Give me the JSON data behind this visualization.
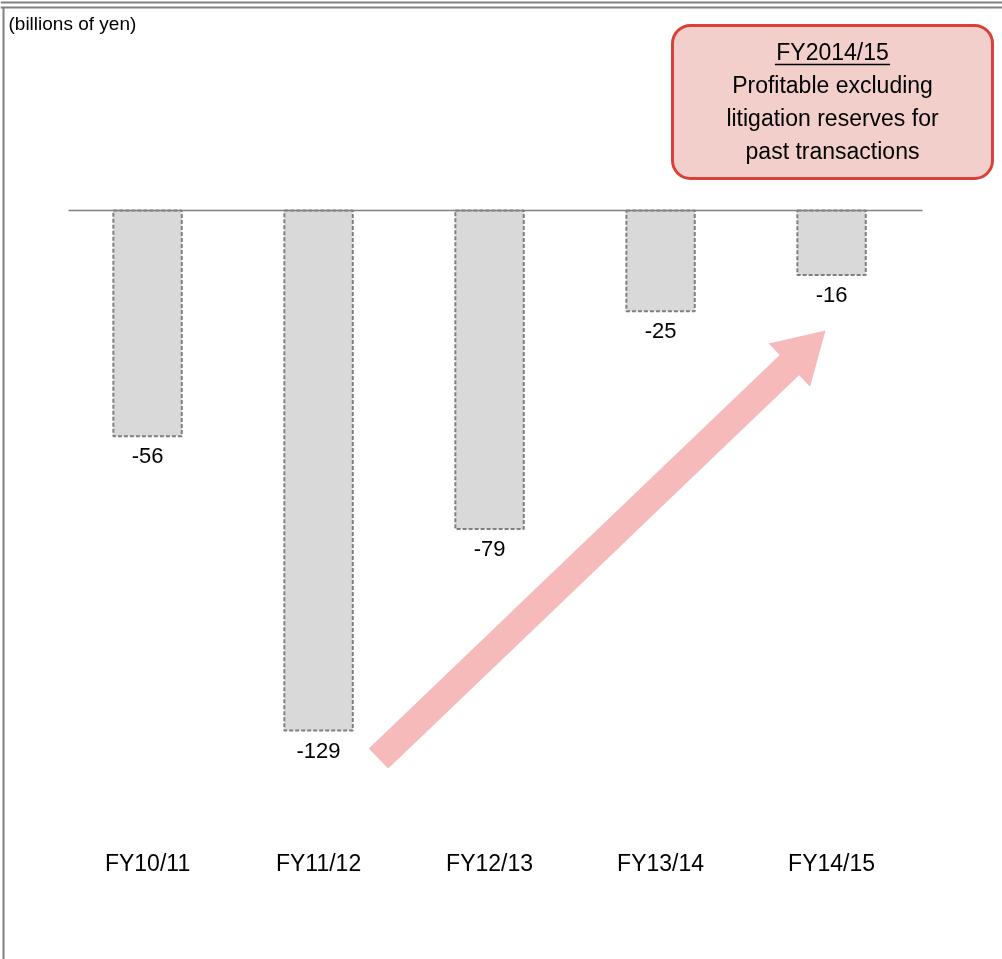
{
  "chart_data": {
    "type": "bar",
    "categories": [
      "FY10/11",
      "FY11/12",
      "FY12/13",
      "FY13/14",
      "FY14/15"
    ],
    "values": [
      -56,
      -129,
      -79,
      -25,
      -16
    ],
    "color": "#d9d9d9",
    "data_labels": true,
    "annotations": [
      "(billions of yen)",
      "FY2014/15",
      "Profitable excluding litigation reserves for past transactions"
    ]
  }
}
